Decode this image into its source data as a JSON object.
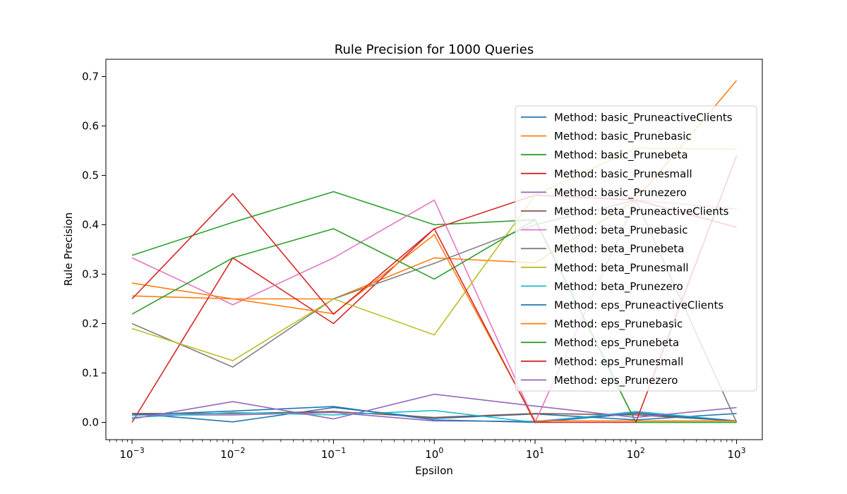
{
  "chart_data": {
    "type": "line",
    "title": "Rule Precision for 1000 Queries",
    "xlabel": "Epsilon",
    "ylabel": "Rule Precision",
    "x_scale": "log",
    "x": [
      0.001,
      0.01,
      0.1,
      1,
      10,
      100,
      1000
    ],
    "x_tick_labels": [
      {
        "base": "10",
        "exp": "−3"
      },
      {
        "base": "10",
        "exp": "−2"
      },
      {
        "base": "10",
        "exp": "−1"
      },
      {
        "base": "10",
        "exp": "0"
      },
      {
        "base": "10",
        "exp": "1"
      },
      {
        "base": "10",
        "exp": "2"
      },
      {
        "base": "10",
        "exp": "3"
      }
    ],
    "xlim": [
      0.00055,
      1800
    ],
    "ylim": [
      -0.035,
      0.735
    ],
    "y_ticks": [
      0.0,
      0.1,
      0.2,
      0.3,
      0.4,
      0.5,
      0.6,
      0.7
    ],
    "y_tick_labels": [
      "0.0",
      "0.1",
      "0.2",
      "0.3",
      "0.4",
      "0.5",
      "0.6",
      "0.7"
    ],
    "grid": false,
    "legend_position": "center-right",
    "series": [
      {
        "name": "Method: basic_PruneactiveClients",
        "color": "#1f77b4",
        "values": [
          0.018,
          0.001,
          0.03,
          0.008,
          0.017,
          0.005,
          0.018
        ]
      },
      {
        "name": "Method: basic_Prunebasic",
        "color": "#ff7f0e",
        "values": [
          0.256,
          0.25,
          0.25,
          0.333,
          0.323,
          0.45,
          0.692
        ]
      },
      {
        "name": "Method: basic_Prunebeta",
        "color": "#2ca02c",
        "values": [
          0.338,
          0.405,
          0.467,
          0.4,
          0.41,
          0.0,
          0.0
        ]
      },
      {
        "name": "Method: basic_Prunesmall",
        "color": "#d62728",
        "values": [
          0.0,
          0.333,
          0.2,
          0.392,
          0.46,
          0.45,
          0.395
        ]
      },
      {
        "name": "Method: basic_Prunezero",
        "color": "#9467bd",
        "values": [
          0.015,
          0.015,
          0.02,
          0.003,
          0.002,
          0.02,
          0.003
        ]
      },
      {
        "name": "Method: beta_PruneactiveClients",
        "color": "#8c564b",
        "values": [
          0.018,
          0.018,
          0.022,
          0.01,
          0.018,
          0.015,
          0.003
        ]
      },
      {
        "name": "Method: beta_Prunebasic",
        "color": "#e377c2",
        "values": [
          0.333,
          0.238,
          0.333,
          0.45,
          0.0,
          0.45,
          0.432
        ]
      },
      {
        "name": "Method: beta_Prunebeta",
        "color": "#7f7f7f",
        "values": [
          0.2,
          0.112,
          0.25,
          0.322,
          0.4,
          0.45,
          0.0
        ]
      },
      {
        "name": "Method: beta_Prunesmall",
        "color": "#bcbd22",
        "values": [
          0.19,
          0.125,
          0.25,
          0.177,
          0.46,
          0.555,
          0.553
        ]
      },
      {
        "name": "Method: beta_Prunezero",
        "color": "#17becf",
        "values": [
          0.01,
          0.02,
          0.015,
          0.024,
          0.0,
          0.022,
          0.003
        ]
      },
      {
        "name": "Method: eps_PruneactiveClients",
        "color": "#1f77b4",
        "values": [
          0.015,
          0.023,
          0.032,
          0.005,
          0.0,
          0.018,
          0.003
        ]
      },
      {
        "name": "Method: eps_Prunebasic",
        "color": "#ff7f0e",
        "values": [
          0.282,
          0.25,
          0.22,
          0.38,
          0.003,
          0.003,
          0.003
        ]
      },
      {
        "name": "Method: eps_Prunebeta",
        "color": "#2ca02c",
        "values": [
          0.219,
          0.333,
          0.392,
          0.29,
          0.41,
          0.0,
          0.0
        ]
      },
      {
        "name": "Method: eps_Prunesmall",
        "color": "#d62728",
        "values": [
          0.25,
          0.463,
          0.219,
          0.392,
          0.0,
          0.0,
          0.54
        ]
      },
      {
        "name": "Method: eps_Prunezero",
        "color": "#9467bd",
        "values": [
          0.007,
          0.042,
          0.007,
          0.057,
          0.033,
          0.01,
          0.03
        ]
      }
    ]
  }
}
